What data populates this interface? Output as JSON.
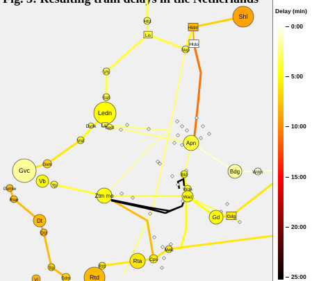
{
  "header": {
    "title": "Fig. 3: Resulting train delays in the Netherlands"
  },
  "legend": {
    "title": "Delay (min)",
    "ticks": [
      "0:00",
      "5:00",
      "10:00",
      "15:00",
      "20:00",
      "25:00"
    ],
    "scale_colors": [
      "#ffffff",
      "#ffff00",
      "#ff8c00",
      "#ff0000",
      "#000000"
    ]
  },
  "stations": [
    {
      "id": "shl",
      "label": "Shl",
      "delay_min": 9,
      "size": "large"
    },
    {
      "id": "hfd",
      "label": "Hfd",
      "delay_min": 4,
      "size": "small"
    },
    {
      "id": "hldm",
      "label": "Hldm",
      "delay_min": 8,
      "size": "small"
    },
    {
      "id": "hldo",
      "label": "Hldo",
      "delay_min": 0,
      "size": "small"
    },
    {
      "id": "lis",
      "label": "Lis",
      "delay_min": 4,
      "size": "small"
    },
    {
      "id": "nvp",
      "label": "Nvp",
      "delay_min": 4,
      "size": "small"
    },
    {
      "id": "vh",
      "label": "Vh",
      "delay_min": 4,
      "size": "small"
    },
    {
      "id": "ssh",
      "label": "Ssh",
      "delay_min": 4,
      "size": "small"
    },
    {
      "id": "ledn",
      "label": "Ledn",
      "delay_min": 5,
      "size": "large"
    },
    {
      "id": "dvnk",
      "label": "Dvnk",
      "delay_min": 4,
      "size": "small"
    },
    {
      "id": "laa",
      "label": "Laa",
      "delay_min": 3,
      "size": "small"
    },
    {
      "id": "ledl",
      "label": "Ledl",
      "delay_min": 4,
      "size": "small"
    },
    {
      "id": "vst",
      "label": "Vst",
      "delay_min": 5,
      "size": "small"
    },
    {
      "id": "apn",
      "label": "Apn",
      "delay_min": 4,
      "size": "medium"
    },
    {
      "id": "bdg",
      "label": "Bdg",
      "delay_min": 2,
      "size": "medium"
    },
    {
      "id": "wdm",
      "label": "Wdm",
      "delay_min": 1,
      "size": "small"
    },
    {
      "id": "gvc",
      "label": "Gvc",
      "delay_min": 2,
      "size": "large"
    },
    {
      "id": "gvm",
      "label": "Gvm",
      "delay_min": 7,
      "size": "small"
    },
    {
      "id": "vb",
      "label": "Vb",
      "delay_min": 5,
      "size": "medium"
    },
    {
      "id": "yp",
      "label": "Yp",
      "delay_min": 4,
      "size": "small"
    },
    {
      "id": "gvmw",
      "label": "Gvmw",
      "delay_min": 8,
      "size": "small"
    },
    {
      "id": "rsw",
      "label": "Rsw",
      "delay_min": 8,
      "size": "small"
    },
    {
      "id": "ztmo",
      "label": "Ztm mo",
      "delay_min": 5,
      "size": "medium"
    },
    {
      "id": "bkl",
      "label": "Bkl",
      "delay_min": 5,
      "size": "small"
    },
    {
      "id": "wdn",
      "label": "Wdn",
      "delay_min": 5,
      "size": "small"
    },
    {
      "id": "wad",
      "label": "Wad",
      "delay_min": 5,
      "size": "small"
    },
    {
      "id": "gd",
      "label": "Gd",
      "delay_min": 5,
      "size": "medium"
    },
    {
      "id": "gdg",
      "label": "Gdg",
      "delay_min": 6,
      "size": "small"
    },
    {
      "id": "dt",
      "label": "Dt",
      "delay_min": 8,
      "size": "medium"
    },
    {
      "id": "dtz",
      "label": "Dtz",
      "delay_min": 8,
      "size": "small"
    },
    {
      "id": "rta",
      "label": "Rta",
      "delay_min": 6,
      "size": "medium"
    },
    {
      "id": "cps",
      "label": "Cps",
      "delay_min": 6,
      "size": "small"
    },
    {
      "id": "nwk",
      "label": "Nwk",
      "delay_min": 6,
      "size": "small"
    },
    {
      "id": "rtb",
      "label": "Rtb",
      "delay_min": 6,
      "size": "small"
    },
    {
      "id": "sdm",
      "label": "Sdm",
      "delay_min": 7,
      "size": "small"
    },
    {
      "id": "sp",
      "label": "Sp",
      "delay_min": 7,
      "size": "small"
    },
    {
      "id": "rtd",
      "label": "Rtd",
      "delay_min": 8,
      "size": "large"
    },
    {
      "id": "vl",
      "label": "Vl",
      "delay_min": 8,
      "size": "small"
    }
  ]
}
